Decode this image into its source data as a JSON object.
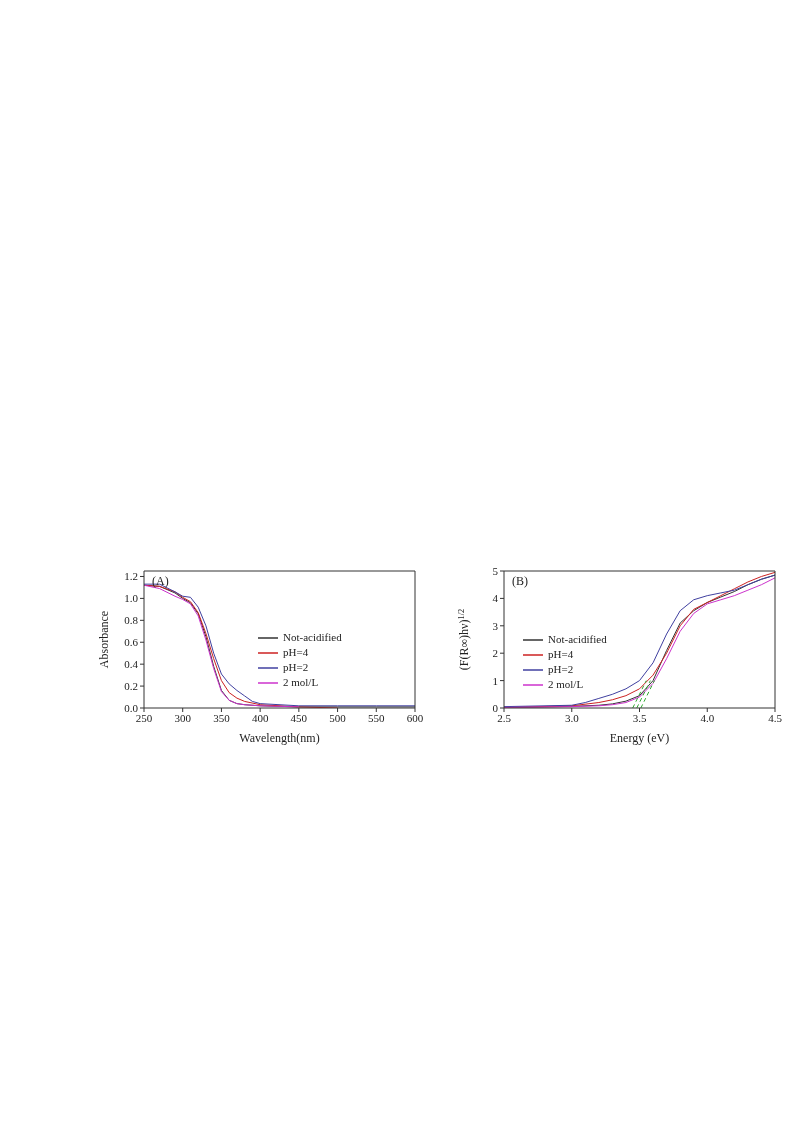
{
  "chart_data": [
    {
      "type": "line",
      "annotations": [
        "(A)"
      ],
      "xlabel": "Wavelength(nm)",
      "ylabel": "Absorbance",
      "xlim": [
        250,
        600
      ],
      "xticks": [
        250,
        300,
        350,
        400,
        450,
        500,
        550,
        600
      ],
      "ylim": [
        0,
        1.25
      ],
      "yticks": [
        {
          "value": 0,
          "label": "0.0"
        },
        {
          "value": 0.2,
          "label": "0.2"
        },
        {
          "value": 0.4,
          "label": "0.4"
        },
        {
          "value": 0.6,
          "label": "0.6"
        },
        {
          "value": 0.8,
          "label": "0.8"
        },
        {
          "value": 1,
          "label": "1.0"
        },
        {
          "value": 1.2,
          "label": "1.2"
        }
      ],
      "legend": "right",
      "marker": "none",
      "line_style": "solid",
      "series": [
        {
          "name": "Not-acidified",
          "color": "#333333",
          "x": [
            250,
            270,
            290,
            300,
            310,
            320,
            330,
            340,
            350,
            360,
            370,
            380,
            400,
            450,
            500,
            550,
            600
          ],
          "values": [
            1.12,
            1.11,
            1.05,
            1.0,
            0.96,
            0.86,
            0.65,
            0.38,
            0.16,
            0.07,
            0.04,
            0.03,
            0.02,
            0.01,
            0.01,
            0.01,
            0.01
          ]
        },
        {
          "name": "pH=4",
          "color": "#cc2222",
          "x": [
            250,
            270,
            290,
            300,
            310,
            320,
            330,
            340,
            350,
            360,
            370,
            380,
            400,
            450,
            500
          ],
          "values": [
            1.12,
            1.11,
            1.06,
            1.01,
            0.97,
            0.87,
            0.68,
            0.45,
            0.25,
            0.14,
            0.09,
            0.06,
            0.03,
            0.01,
            0.0
          ]
        },
        {
          "name": "pH=2",
          "color": "#4040a0",
          "x": [
            250,
            270,
            290,
            300,
            310,
            320,
            330,
            340,
            350,
            360,
            370,
            380,
            390,
            400,
            450,
            500,
            550,
            600
          ],
          "values": [
            1.13,
            1.13,
            1.06,
            1.02,
            1.01,
            0.92,
            0.75,
            0.5,
            0.31,
            0.22,
            0.16,
            0.11,
            0.06,
            0.04,
            0.02,
            0.02,
            0.02,
            0.02
          ]
        },
        {
          "name": "2 mol/L",
          "color": "#cc33cc",
          "x": [
            250,
            270,
            290,
            300,
            310,
            320,
            330,
            340,
            350,
            360,
            370,
            380,
            400,
            450
          ],
          "values": [
            1.12,
            1.09,
            1.02,
            0.99,
            0.95,
            0.84,
            0.62,
            0.36,
            0.15,
            0.07,
            0.04,
            0.03,
            0.02,
            0.01
          ]
        }
      ]
    },
    {
      "type": "line",
      "annotations": [
        "(B)"
      ],
      "xlabel": "Energy (eV)",
      "ylabel": "(F(R∞)hν)$^{1/2}$",
      "xlim": [
        2.5,
        4.5
      ],
      "xticks": [
        2.5,
        {
          "value": 3,
          "label": "3.0"
        },
        3.5,
        {
          "value": 4,
          "label": "4.0"
        },
        4.5
      ],
      "ylim": [
        0,
        5
      ],
      "yticks": [
        0,
        1,
        2,
        3,
        4,
        5
      ],
      "legend": "left",
      "marker": "none",
      "line_style": "solid",
      "series": [
        {
          "name": "Not-acidified",
          "color": "#333333",
          "x": [
            2.5,
            2.8,
            3.0,
            3.2,
            3.3,
            3.4,
            3.5,
            3.6,
            3.7,
            3.8,
            3.9,
            4.0,
            4.1,
            4.2,
            4.3,
            4.4,
            4.5
          ],
          "values": [
            0.02,
            0.04,
            0.06,
            0.1,
            0.15,
            0.25,
            0.45,
            1.0,
            2.1,
            3.1,
            3.55,
            3.85,
            4.05,
            4.25,
            4.5,
            4.7,
            4.85
          ]
        },
        {
          "name": "pH=4",
          "color": "#cc2222",
          "x": [
            2.5,
            3.0,
            3.2,
            3.3,
            3.4,
            3.5,
            3.6,
            3.7,
            3.8,
            3.9,
            4.0,
            4.1,
            4.2,
            4.3,
            4.4,
            4.5
          ],
          "values": [
            0.02,
            0.08,
            0.2,
            0.3,
            0.45,
            0.7,
            1.2,
            2.0,
            3.0,
            3.6,
            3.85,
            4.1,
            4.35,
            4.6,
            4.8,
            4.95
          ]
        },
        {
          "name": "pH=2",
          "color": "#4040a0",
          "x": [
            2.5,
            3.0,
            3.1,
            3.2,
            3.3,
            3.4,
            3.5,
            3.6,
            3.7,
            3.8,
            3.9,
            4.0,
            4.1,
            4.2,
            4.3,
            4.4,
            4.5
          ],
          "values": [
            0.05,
            0.1,
            0.2,
            0.35,
            0.5,
            0.7,
            1.0,
            1.65,
            2.7,
            3.55,
            3.95,
            4.1,
            4.2,
            4.3,
            4.5,
            4.7,
            4.85
          ]
        },
        {
          "name": "2 mol/L",
          "color": "#cc33cc",
          "x": [
            2.5,
            3.0,
            3.2,
            3.3,
            3.4,
            3.5,
            3.6,
            3.7,
            3.8,
            3.9,
            4.0,
            4.1,
            4.2,
            4.3,
            4.4,
            4.5
          ],
          "values": [
            0.02,
            0.05,
            0.08,
            0.12,
            0.2,
            0.4,
            0.9,
            1.8,
            2.8,
            3.45,
            3.8,
            3.95,
            4.1,
            4.3,
            4.5,
            4.75
          ]
        },
        {
          "type": "line",
          "color": "#33aa33",
          "line_style": "dashed",
          "x": [
            3.45,
            3.55
          ],
          "values": [
            0,
            1
          ]
        },
        {
          "type": "line",
          "color": "#33aa33",
          "line_style": "dashed",
          "x": [
            3.48,
            3.58
          ],
          "values": [
            0,
            1
          ]
        },
        {
          "type": "line",
          "color": "#33aa33",
          "line_style": "dashed",
          "x": [
            3.51,
            3.61
          ],
          "values": [
            0,
            1
          ]
        }
      ]
    }
  ]
}
